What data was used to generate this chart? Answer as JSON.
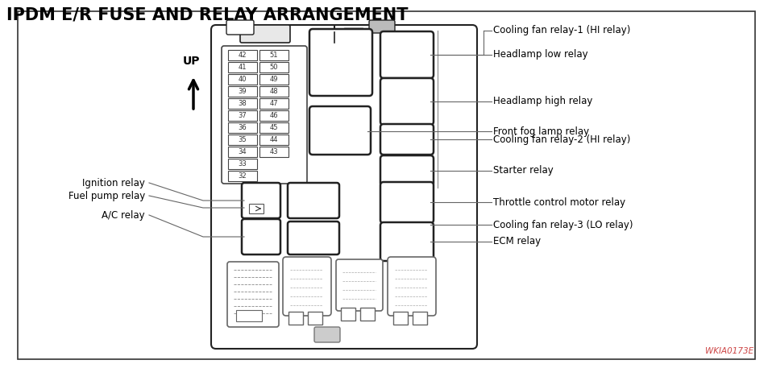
{
  "title": "IPDM E/R FUSE AND RELAY ARRANGEMENT",
  "title_fontsize": 15,
  "background_color": "#ffffff",
  "label_color": "#000000",
  "watermark": "WKIA0173E",
  "fuse_labels_left": [
    "42",
    "41",
    "40",
    "39",
    "38",
    "37",
    "36",
    "35",
    "34",
    "33",
    "32"
  ],
  "fuse_labels_right": [
    "51",
    "50",
    "49",
    "48",
    "47",
    "46",
    "45",
    "44",
    "43",
    "",
    ""
  ],
  "right_labels": [
    "Cooling fan relay-1 (HI relay)",
    "Headlamp low relay",
    "Headlamp high relay",
    "Front fog lamp relay",
    "Cooling fan relay-2 (HI relay)",
    "Starter relay",
    "Throttle control motor relay",
    "Cooling fan relay-3 (LO relay)",
    "ECM relay"
  ],
  "left_labels": [
    "Ignition relay",
    "Fuel pump relay",
    "A/C relay"
  ],
  "line_color": "#555555",
  "box_edge_color": "#222222",
  "fuse_edge_color": "#444444"
}
